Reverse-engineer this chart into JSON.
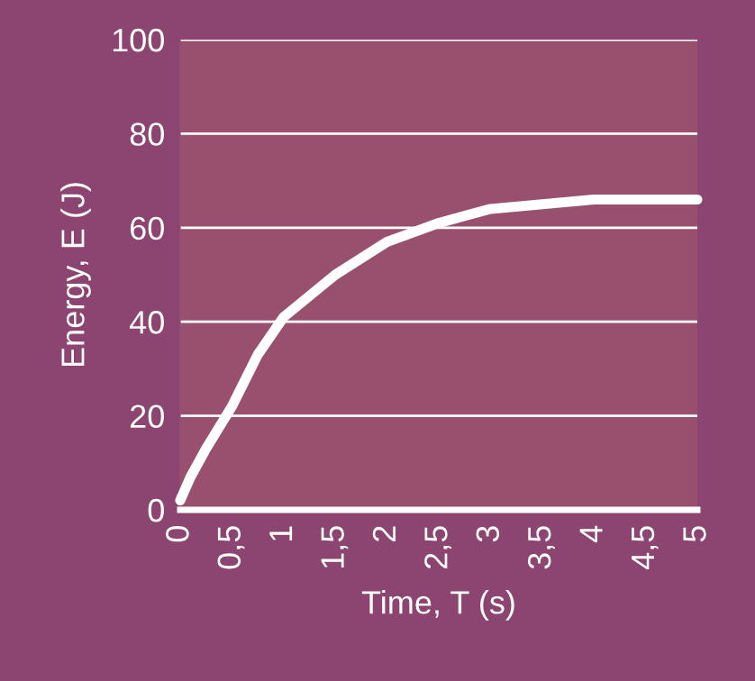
{
  "chart_data": {
    "type": "line",
    "xlabel": "Time, T (s)",
    "ylabel": "Energy, E (J)",
    "x": [
      0,
      0.1,
      0.25,
      0.5,
      0.75,
      1,
      1.5,
      2,
      2.5,
      3,
      3.5,
      4,
      4.5,
      5
    ],
    "series": [
      {
        "color": "#ffffff",
        "values": [
          2,
          7,
          13,
          22,
          33,
          41,
          50,
          57,
          61,
          64,
          65,
          66,
          66,
          66
        ]
      }
    ],
    "xlim": [
      0,
      5
    ],
    "ylim": [
      0,
      100
    ],
    "xticks": [
      0,
      {
        "value": 0.5,
        "label": "0,5"
      },
      1,
      {
        "value": 1.5,
        "label": "1,5"
      },
      2,
      {
        "value": 2.5,
        "label": "2,5"
      },
      3,
      {
        "value": 3.5,
        "label": "3,5"
      },
      4,
      {
        "value": 4.5,
        "label": "4,5"
      },
      5
    ],
    "yticks": [
      0,
      20,
      40,
      60,
      80,
      100
    ],
    "grid": "y",
    "marker": "none",
    "line_style": "solid"
  }
}
